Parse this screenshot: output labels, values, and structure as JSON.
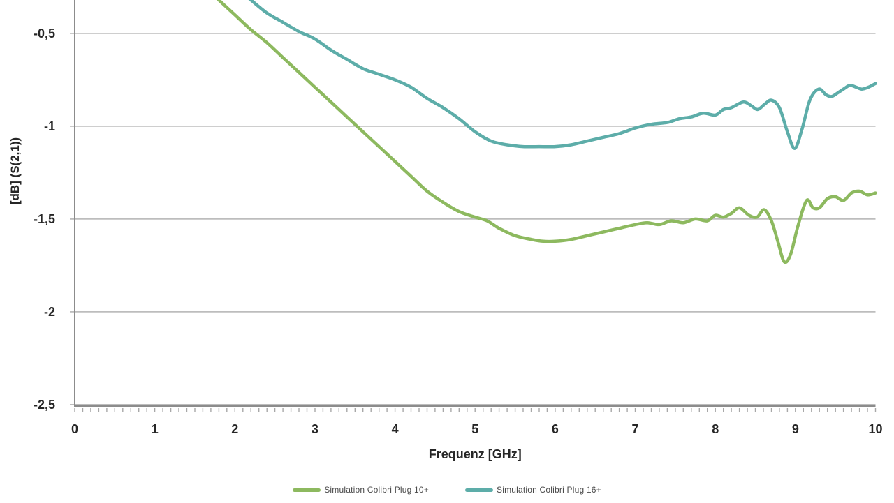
{
  "chart_data": {
    "type": "line",
    "title": "",
    "xlabel": "Frequenz [GHz]",
    "ylabel": "[dB] (S(2,1))",
    "xlim": [
      0,
      10
    ],
    "ylim_visible": [
      -2.508,
      -0.32
    ],
    "grid": "horizontal",
    "legend_position": "bottom",
    "x_ticks": [
      {
        "v": 0,
        "label": "0"
      },
      {
        "v": 1,
        "label": "1"
      },
      {
        "v": 2,
        "label": "2"
      },
      {
        "v": 3,
        "label": "3"
      },
      {
        "v": 4,
        "label": "4"
      },
      {
        "v": 5,
        "label": "5"
      },
      {
        "v": 6,
        "label": "6"
      },
      {
        "v": 7,
        "label": "7"
      },
      {
        "v": 8,
        "label": "8"
      },
      {
        "v": 9,
        "label": "9"
      },
      {
        "v": 10,
        "label": "10"
      }
    ],
    "y_ticks": [
      {
        "v": -0.5,
        "label": "-0,5"
      },
      {
        "v": -1,
        "label": "-1"
      },
      {
        "v": -1.5,
        "label": "-1,5"
      },
      {
        "v": -2,
        "label": "-2"
      },
      {
        "v": -2.5,
        "label": "-2,5"
      }
    ],
    "minor_x_tick_step": 0.1,
    "colors": {
      "grid": "#bdbdbd",
      "axis": "#8c8c8c",
      "tick": "#a8a8a8",
      "tick_label": "#262626",
      "axis_title": "#262626"
    },
    "series": [
      {
        "name": "Simulation Colibri Plug 10+",
        "color": "#8db95f",
        "points": [
          [
            1.72,
            -0.28
          ],
          [
            1.8,
            -0.32
          ],
          [
            2.0,
            -0.4
          ],
          [
            2.2,
            -0.48
          ],
          [
            2.4,
            -0.55
          ],
          [
            2.6,
            -0.63
          ],
          [
            2.8,
            -0.71
          ],
          [
            3.0,
            -0.79
          ],
          [
            3.2,
            -0.87
          ],
          [
            3.4,
            -0.95
          ],
          [
            3.6,
            -1.03
          ],
          [
            3.8,
            -1.11
          ],
          [
            4.0,
            -1.19
          ],
          [
            4.2,
            -1.27
          ],
          [
            4.4,
            -1.35
          ],
          [
            4.6,
            -1.41
          ],
          [
            4.8,
            -1.46
          ],
          [
            5.0,
            -1.49
          ],
          [
            5.15,
            -1.51
          ],
          [
            5.3,
            -1.55
          ],
          [
            5.5,
            -1.59
          ],
          [
            5.7,
            -1.61
          ],
          [
            5.85,
            -1.62
          ],
          [
            6.0,
            -1.62
          ],
          [
            6.2,
            -1.61
          ],
          [
            6.4,
            -1.59
          ],
          [
            6.6,
            -1.57
          ],
          [
            6.8,
            -1.55
          ],
          [
            7.0,
            -1.53
          ],
          [
            7.15,
            -1.52
          ],
          [
            7.3,
            -1.53
          ],
          [
            7.45,
            -1.51
          ],
          [
            7.6,
            -1.52
          ],
          [
            7.75,
            -1.5
          ],
          [
            7.9,
            -1.51
          ],
          [
            8.0,
            -1.48
          ],
          [
            8.1,
            -1.49
          ],
          [
            8.2,
            -1.47
          ],
          [
            8.3,
            -1.44
          ],
          [
            8.42,
            -1.48
          ],
          [
            8.52,
            -1.49
          ],
          [
            8.61,
            -1.45
          ],
          [
            8.7,
            -1.51
          ],
          [
            8.78,
            -1.62
          ],
          [
            8.86,
            -1.73
          ],
          [
            8.94,
            -1.69
          ],
          [
            9.03,
            -1.54
          ],
          [
            9.14,
            -1.4
          ],
          [
            9.22,
            -1.44
          ],
          [
            9.3,
            -1.44
          ],
          [
            9.4,
            -1.39
          ],
          [
            9.5,
            -1.38
          ],
          [
            9.6,
            -1.4
          ],
          [
            9.7,
            -1.36
          ],
          [
            9.8,
            -1.35
          ],
          [
            9.9,
            -1.37
          ],
          [
            10.0,
            -1.36
          ]
        ]
      },
      {
        "name": "Simulation Colibri Plug 16+",
        "color": "#5dada9",
        "points": [
          [
            2.08,
            -0.28
          ],
          [
            2.2,
            -0.32
          ],
          [
            2.4,
            -0.39
          ],
          [
            2.6,
            -0.44
          ],
          [
            2.8,
            -0.49
          ],
          [
            3.0,
            -0.53
          ],
          [
            3.2,
            -0.59
          ],
          [
            3.4,
            -0.64
          ],
          [
            3.6,
            -0.69
          ],
          [
            3.8,
            -0.72
          ],
          [
            4.0,
            -0.75
          ],
          [
            4.2,
            -0.79
          ],
          [
            4.4,
            -0.85
          ],
          [
            4.6,
            -0.9
          ],
          [
            4.8,
            -0.96
          ],
          [
            5.0,
            -1.03
          ],
          [
            5.2,
            -1.08
          ],
          [
            5.4,
            -1.1
          ],
          [
            5.6,
            -1.11
          ],
          [
            5.8,
            -1.11
          ],
          [
            6.0,
            -1.11
          ],
          [
            6.2,
            -1.1
          ],
          [
            6.4,
            -1.08
          ],
          [
            6.6,
            -1.06
          ],
          [
            6.8,
            -1.04
          ],
          [
            7.0,
            -1.01
          ],
          [
            7.2,
            -0.99
          ],
          [
            7.4,
            -0.98
          ],
          [
            7.55,
            -0.96
          ],
          [
            7.7,
            -0.95
          ],
          [
            7.85,
            -0.93
          ],
          [
            8.0,
            -0.94
          ],
          [
            8.1,
            -0.91
          ],
          [
            8.2,
            -0.9
          ],
          [
            8.35,
            -0.87
          ],
          [
            8.45,
            -0.89
          ],
          [
            8.53,
            -0.91
          ],
          [
            8.62,
            -0.88
          ],
          [
            8.7,
            -0.86
          ],
          [
            8.8,
            -0.9
          ],
          [
            8.9,
            -1.03
          ],
          [
            8.99,
            -1.12
          ],
          [
            9.08,
            -1.02
          ],
          [
            9.18,
            -0.86
          ],
          [
            9.29,
            -0.8
          ],
          [
            9.38,
            -0.83
          ],
          [
            9.45,
            -0.84
          ],
          [
            9.53,
            -0.82
          ],
          [
            9.6,
            -0.8
          ],
          [
            9.68,
            -0.78
          ],
          [
            9.76,
            -0.79
          ],
          [
            9.83,
            -0.8
          ],
          [
            9.91,
            -0.79
          ],
          [
            10.0,
            -0.77
          ]
        ]
      }
    ]
  },
  "legend": {
    "items": [
      {
        "label": "Simulation Colibri Plug 10+"
      },
      {
        "label": "Simulation Colibri Plug 16+"
      }
    ]
  }
}
